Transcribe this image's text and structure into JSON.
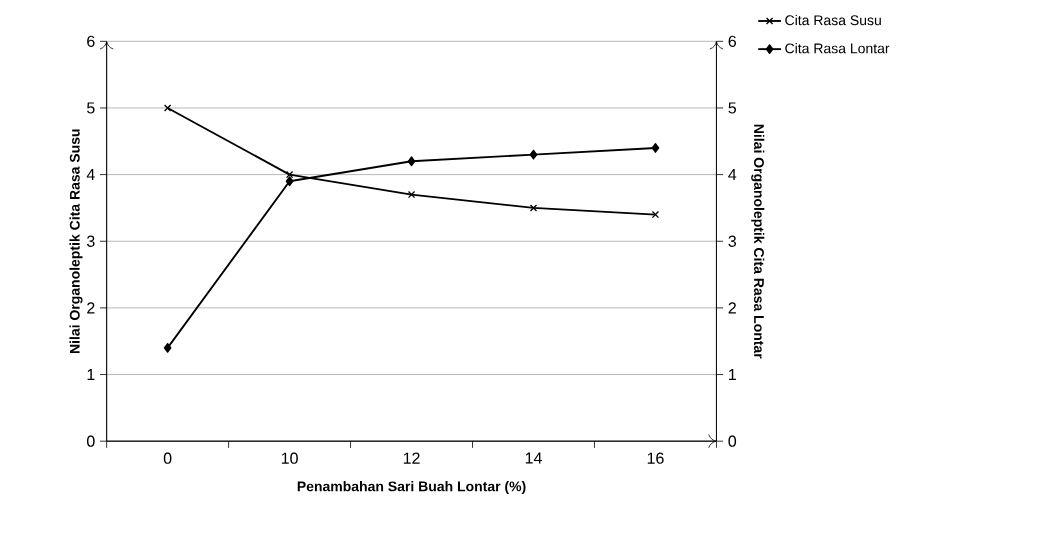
{
  "chart_data": {
    "type": "line",
    "xlabel": "Penambahan Sari Buah Lontar (%)",
    "ylabel": "Nilai Organoleptik Cita Rasa Susu",
    "y2label": "Nilai Organoleptik Cita Rasa Lontar",
    "categories": [
      "0",
      "10",
      "12",
      "14",
      "16"
    ],
    "series": [
      {
        "name": "Cita Rasa Susu",
        "color": "#000000",
        "marker": "cross",
        "values": [
          5,
          4,
          3.7,
          3.5,
          3.4
        ]
      },
      {
        "name": "Cita Rasa Lontar",
        "color": "#000000",
        "marker": "diamond",
        "axis": "y2",
        "values": [
          1.4,
          3.9,
          4.2,
          4.3,
          4.4
        ]
      }
    ],
    "ylim": [
      0,
      6
    ],
    "yticks": [
      0,
      1,
      2,
      3,
      4,
      5,
      6
    ],
    "y2lim": [
      0,
      6
    ],
    "y2ticks": [
      0,
      1,
      2,
      3,
      4,
      5,
      6
    ],
    "grid": "y",
    "legend": "top right",
    "line_style": "solid"
  }
}
